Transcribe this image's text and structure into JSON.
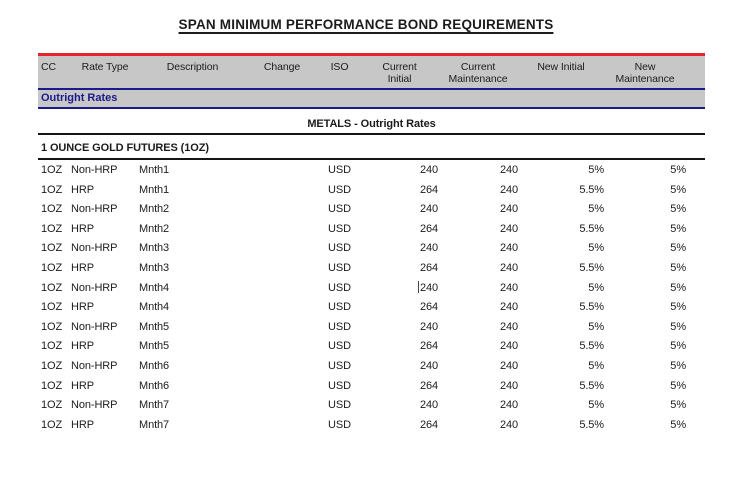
{
  "report": {
    "title": "SPAN MINIMUM PERFORMANCE BOND REQUIREMENTS"
  },
  "table": {
    "columns": [
      "CC",
      "Rate Type",
      "Description",
      "Change",
      "ISO",
      "Current\nInitial",
      "Current\nMaintenance",
      "New Initial",
      "New\nMaintenance"
    ],
    "section_label": "Outright Rates",
    "group_heading": "METALS - Outright Rates",
    "product_heading": "1 OUNCE GOLD FUTURES (1OZ)",
    "caret_row_index": 6,
    "rows": [
      {
        "cc": "1OZ",
        "rate_type": "Non-HRP",
        "description": "Mnth1",
        "change": "",
        "iso": "USD",
        "current_initial": "240",
        "current_maintenance": "240",
        "new_initial": "5%",
        "new_maintenance": "5%"
      },
      {
        "cc": "1OZ",
        "rate_type": "HRP",
        "description": "Mnth1",
        "change": "",
        "iso": "USD",
        "current_initial": "264",
        "current_maintenance": "240",
        "new_initial": "5.5%",
        "new_maintenance": "5%"
      },
      {
        "cc": "1OZ",
        "rate_type": "Non-HRP",
        "description": "Mnth2",
        "change": "",
        "iso": "USD",
        "current_initial": "240",
        "current_maintenance": "240",
        "new_initial": "5%",
        "new_maintenance": "5%"
      },
      {
        "cc": "1OZ",
        "rate_type": "HRP",
        "description": "Mnth2",
        "change": "",
        "iso": "USD",
        "current_initial": "264",
        "current_maintenance": "240",
        "new_initial": "5.5%",
        "new_maintenance": "5%"
      },
      {
        "cc": "1OZ",
        "rate_type": "Non-HRP",
        "description": "Mnth3",
        "change": "",
        "iso": "USD",
        "current_initial": "240",
        "current_maintenance": "240",
        "new_initial": "5%",
        "new_maintenance": "5%"
      },
      {
        "cc": "1OZ",
        "rate_type": "HRP",
        "description": "Mnth3",
        "change": "",
        "iso": "USD",
        "current_initial": "264",
        "current_maintenance": "240",
        "new_initial": "5.5%",
        "new_maintenance": "5%"
      },
      {
        "cc": "1OZ",
        "rate_type": "Non-HRP",
        "description": "Mnth4",
        "change": "",
        "iso": "USD",
        "current_initial": "240",
        "current_maintenance": "240",
        "new_initial": "5%",
        "new_maintenance": "5%"
      },
      {
        "cc": "1OZ",
        "rate_type": "HRP",
        "description": "Mnth4",
        "change": "",
        "iso": "USD",
        "current_initial": "264",
        "current_maintenance": "240",
        "new_initial": "5.5%",
        "new_maintenance": "5%"
      },
      {
        "cc": "1OZ",
        "rate_type": "Non-HRP",
        "description": "Mnth5",
        "change": "",
        "iso": "USD",
        "current_initial": "240",
        "current_maintenance": "240",
        "new_initial": "5%",
        "new_maintenance": "5%"
      },
      {
        "cc": "1OZ",
        "rate_type": "HRP",
        "description": "Mnth5",
        "change": "",
        "iso": "USD",
        "current_initial": "264",
        "current_maintenance": "240",
        "new_initial": "5.5%",
        "new_maintenance": "5%"
      },
      {
        "cc": "1OZ",
        "rate_type": "Non-HRP",
        "description": "Mnth6",
        "change": "",
        "iso": "USD",
        "current_initial": "240",
        "current_maintenance": "240",
        "new_initial": "5%",
        "new_maintenance": "5%"
      },
      {
        "cc": "1OZ",
        "rate_type": "HRP",
        "description": "Mnth6",
        "change": "",
        "iso": "USD",
        "current_initial": "264",
        "current_maintenance": "240",
        "new_initial": "5.5%",
        "new_maintenance": "5%"
      },
      {
        "cc": "1OZ",
        "rate_type": "Non-HRP",
        "description": "Mnth7",
        "change": "",
        "iso": "USD",
        "current_initial": "240",
        "current_maintenance": "240",
        "new_initial": "5%",
        "new_maintenance": "5%"
      },
      {
        "cc": "1OZ",
        "rate_type": "HRP",
        "description": "Mnth7",
        "change": "",
        "iso": "USD",
        "current_initial": "264",
        "current_maintenance": "240",
        "new_initial": "5.5%",
        "new_maintenance": "5%"
      }
    ]
  },
  "colors": {
    "accent_red": "#e42230",
    "navy_blue": "#1a1a8c",
    "header_gray": "#c7c7c7",
    "rule_black": "#151515"
  }
}
